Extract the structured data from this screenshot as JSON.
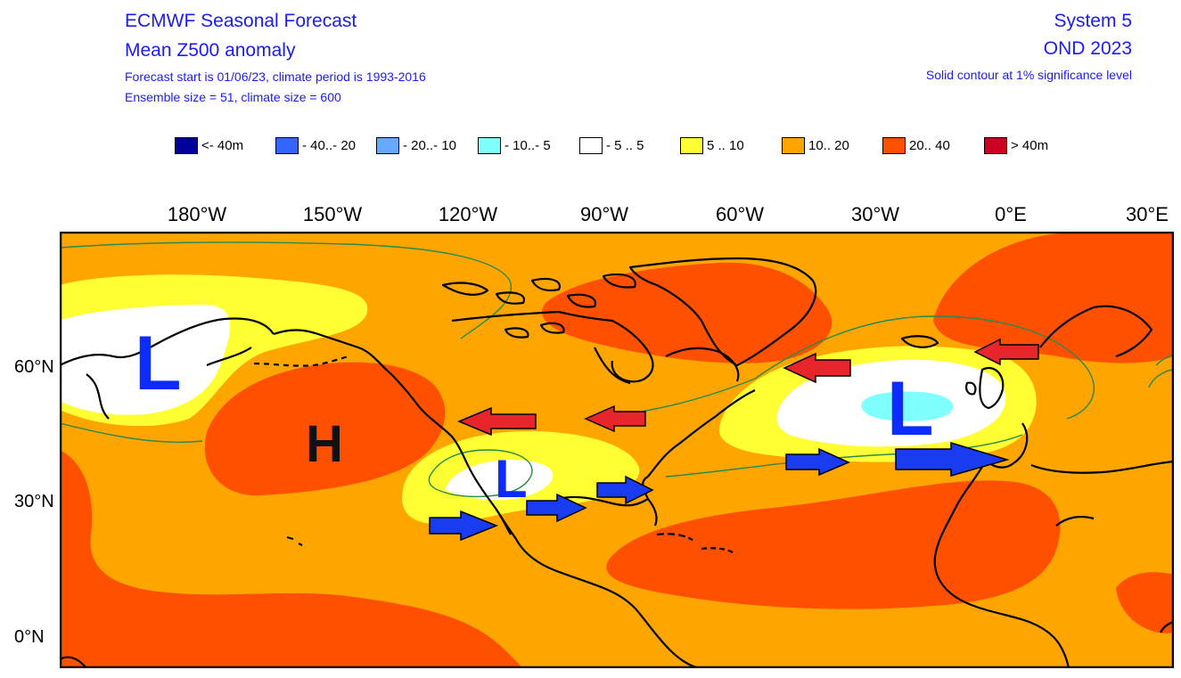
{
  "header": {
    "title_line1": "ECMWF Seasonal Forecast",
    "title_line2": "Mean Z500 anomaly",
    "info_line1": "Forecast start is 01/06/23, climate period is 1993-2016",
    "info_line2": "Ensemble size = 51, climate size = 600",
    "system": "System 5",
    "period": "OND 2023",
    "significance": "Solid contour at 1% significance level"
  },
  "legend": [
    {
      "label": "<- 40m",
      "color": "#000099"
    },
    {
      "label": "- 40..- 20",
      "color": "#3366ff"
    },
    {
      "label": "- 20..- 10",
      "color": "#66aaff"
    },
    {
      "label": "- 10..- 5",
      "color": "#80ffff"
    },
    {
      "label": "- 5 .. 5",
      "color": "#ffffff"
    },
    {
      "label": "5 .. 10",
      "color": "#ffff33"
    },
    {
      "label": "10.. 20",
      "color": "#ffa500"
    },
    {
      "label": "20.. 40",
      "color": "#ff5000"
    },
    {
      "label": "> 40m",
      "color": "#cc0022"
    }
  ],
  "axes": {
    "lon_labels": [
      "180°W",
      "150°W",
      "120°W",
      "90°W",
      "60°W",
      "30°W",
      "0°E",
      "30°E"
    ],
    "lat_labels": [
      "60°N",
      "30°N",
      "0°N"
    ]
  },
  "map": {
    "pressure_centers": [
      "L",
      "H",
      "L",
      "L"
    ],
    "arrows": {
      "red": "westward",
      "blue": "eastward"
    },
    "colors": {
      "land_line": "#000000",
      "significance_contour": "#2a8a4a",
      "low_label": "#0b2bff",
      "high_label": "#111111",
      "red_arrow": "#e8252a",
      "blue_arrow": "#1a3cf0"
    }
  }
}
